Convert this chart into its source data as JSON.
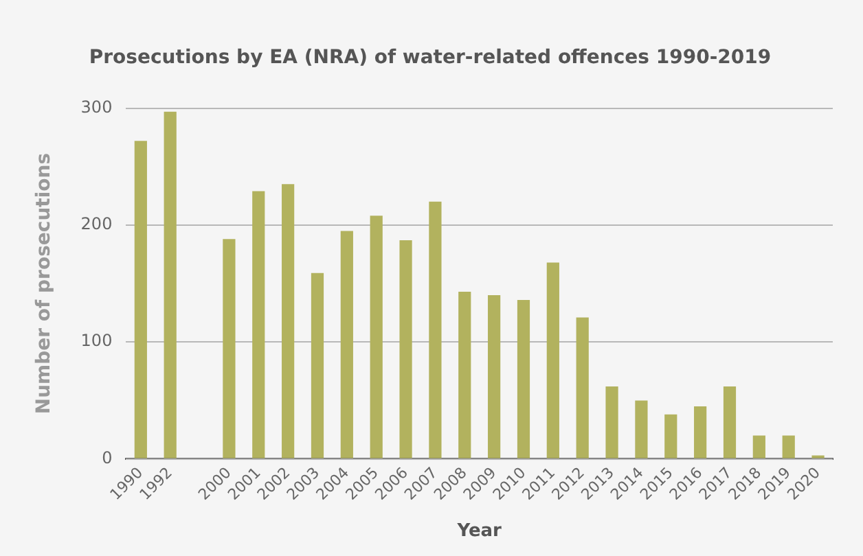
{
  "chart_data": {
    "type": "bar",
    "title": "Prosecutions by EA (NRA) of water-related offences 1990-2019",
    "xlabel": "Year",
    "ylabel": "Number of prosecutions",
    "categories": [
      "1990",
      "1992",
      null,
      "2000",
      "2001",
      "2002",
      "2003",
      "2004",
      "2005",
      "2006",
      "2007",
      "2008",
      "2009",
      "2010",
      "2011",
      "2012",
      "2013",
      "2014",
      "2015",
      "2016",
      "2017",
      "2018",
      "2019",
      "2020"
    ],
    "values": [
      272,
      297,
      null,
      188,
      229,
      235,
      159,
      195,
      208,
      187,
      220,
      143,
      140,
      136,
      168,
      121,
      62,
      50,
      38,
      45,
      62,
      20,
      20,
      3
    ],
    "color": "#b2b25e",
    "ylim": [
      0,
      300
    ],
    "yticks": [
      0,
      100,
      200,
      300
    ],
    "grid": "y",
    "legend": false
  }
}
